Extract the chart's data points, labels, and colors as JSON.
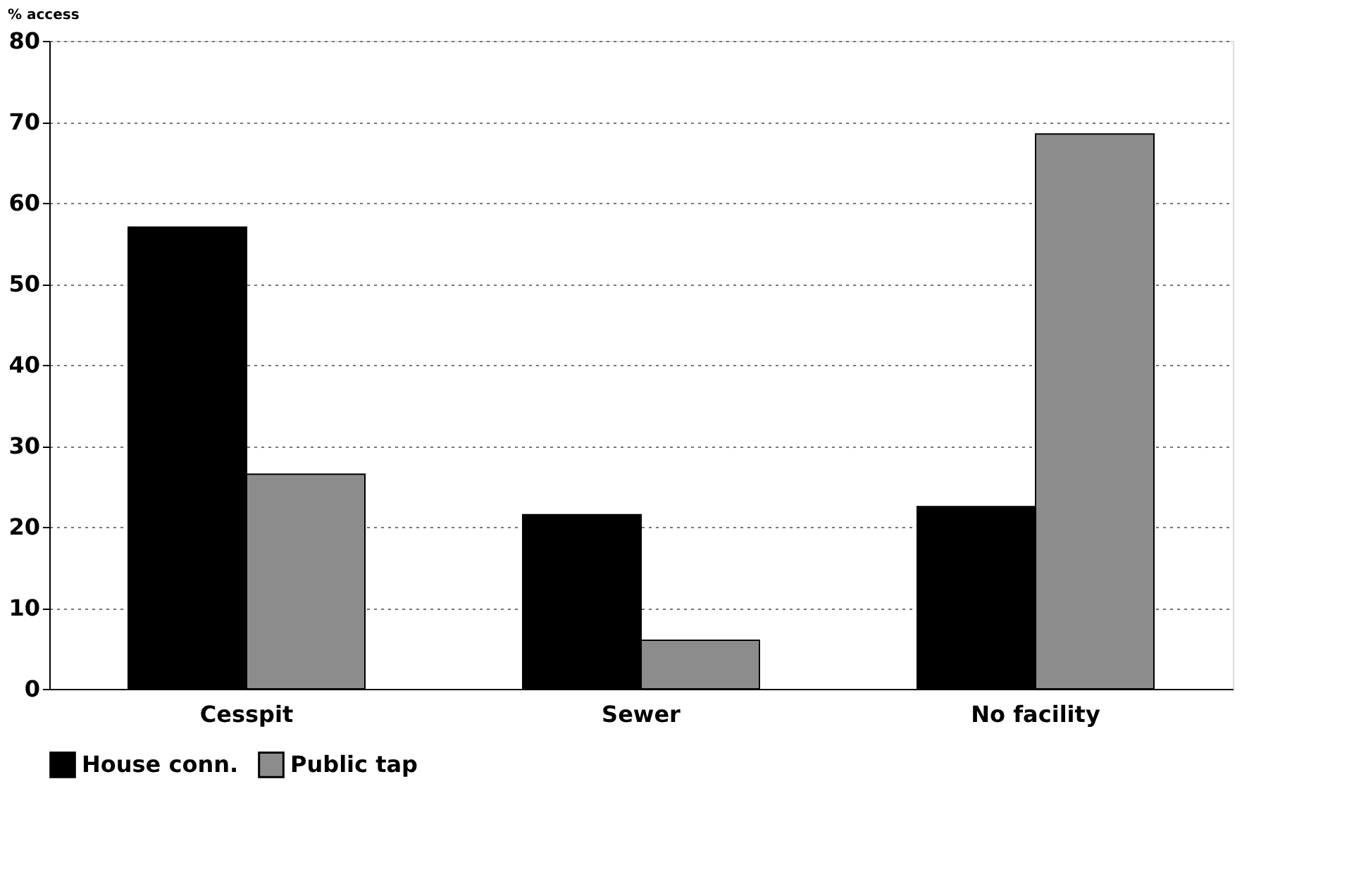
{
  "chart_data": {
    "type": "bar",
    "ylabel": "% access",
    "categories": [
      "Cesspit",
      "Sewer",
      "No facility"
    ],
    "series": [
      {
        "name": "House conn.",
        "color": "#000000",
        "values": [
          57,
          21.5,
          22.5
        ]
      },
      {
        "name": "Public tap",
        "color": "#8c8c8c",
        "values": [
          26.5,
          6,
          68.5
        ]
      }
    ],
    "ylim": [
      0,
      80
    ],
    "yticks": [
      0,
      10,
      20,
      30,
      40,
      50,
      60,
      70,
      80
    ],
    "grid": "y",
    "legend": "bottom"
  }
}
